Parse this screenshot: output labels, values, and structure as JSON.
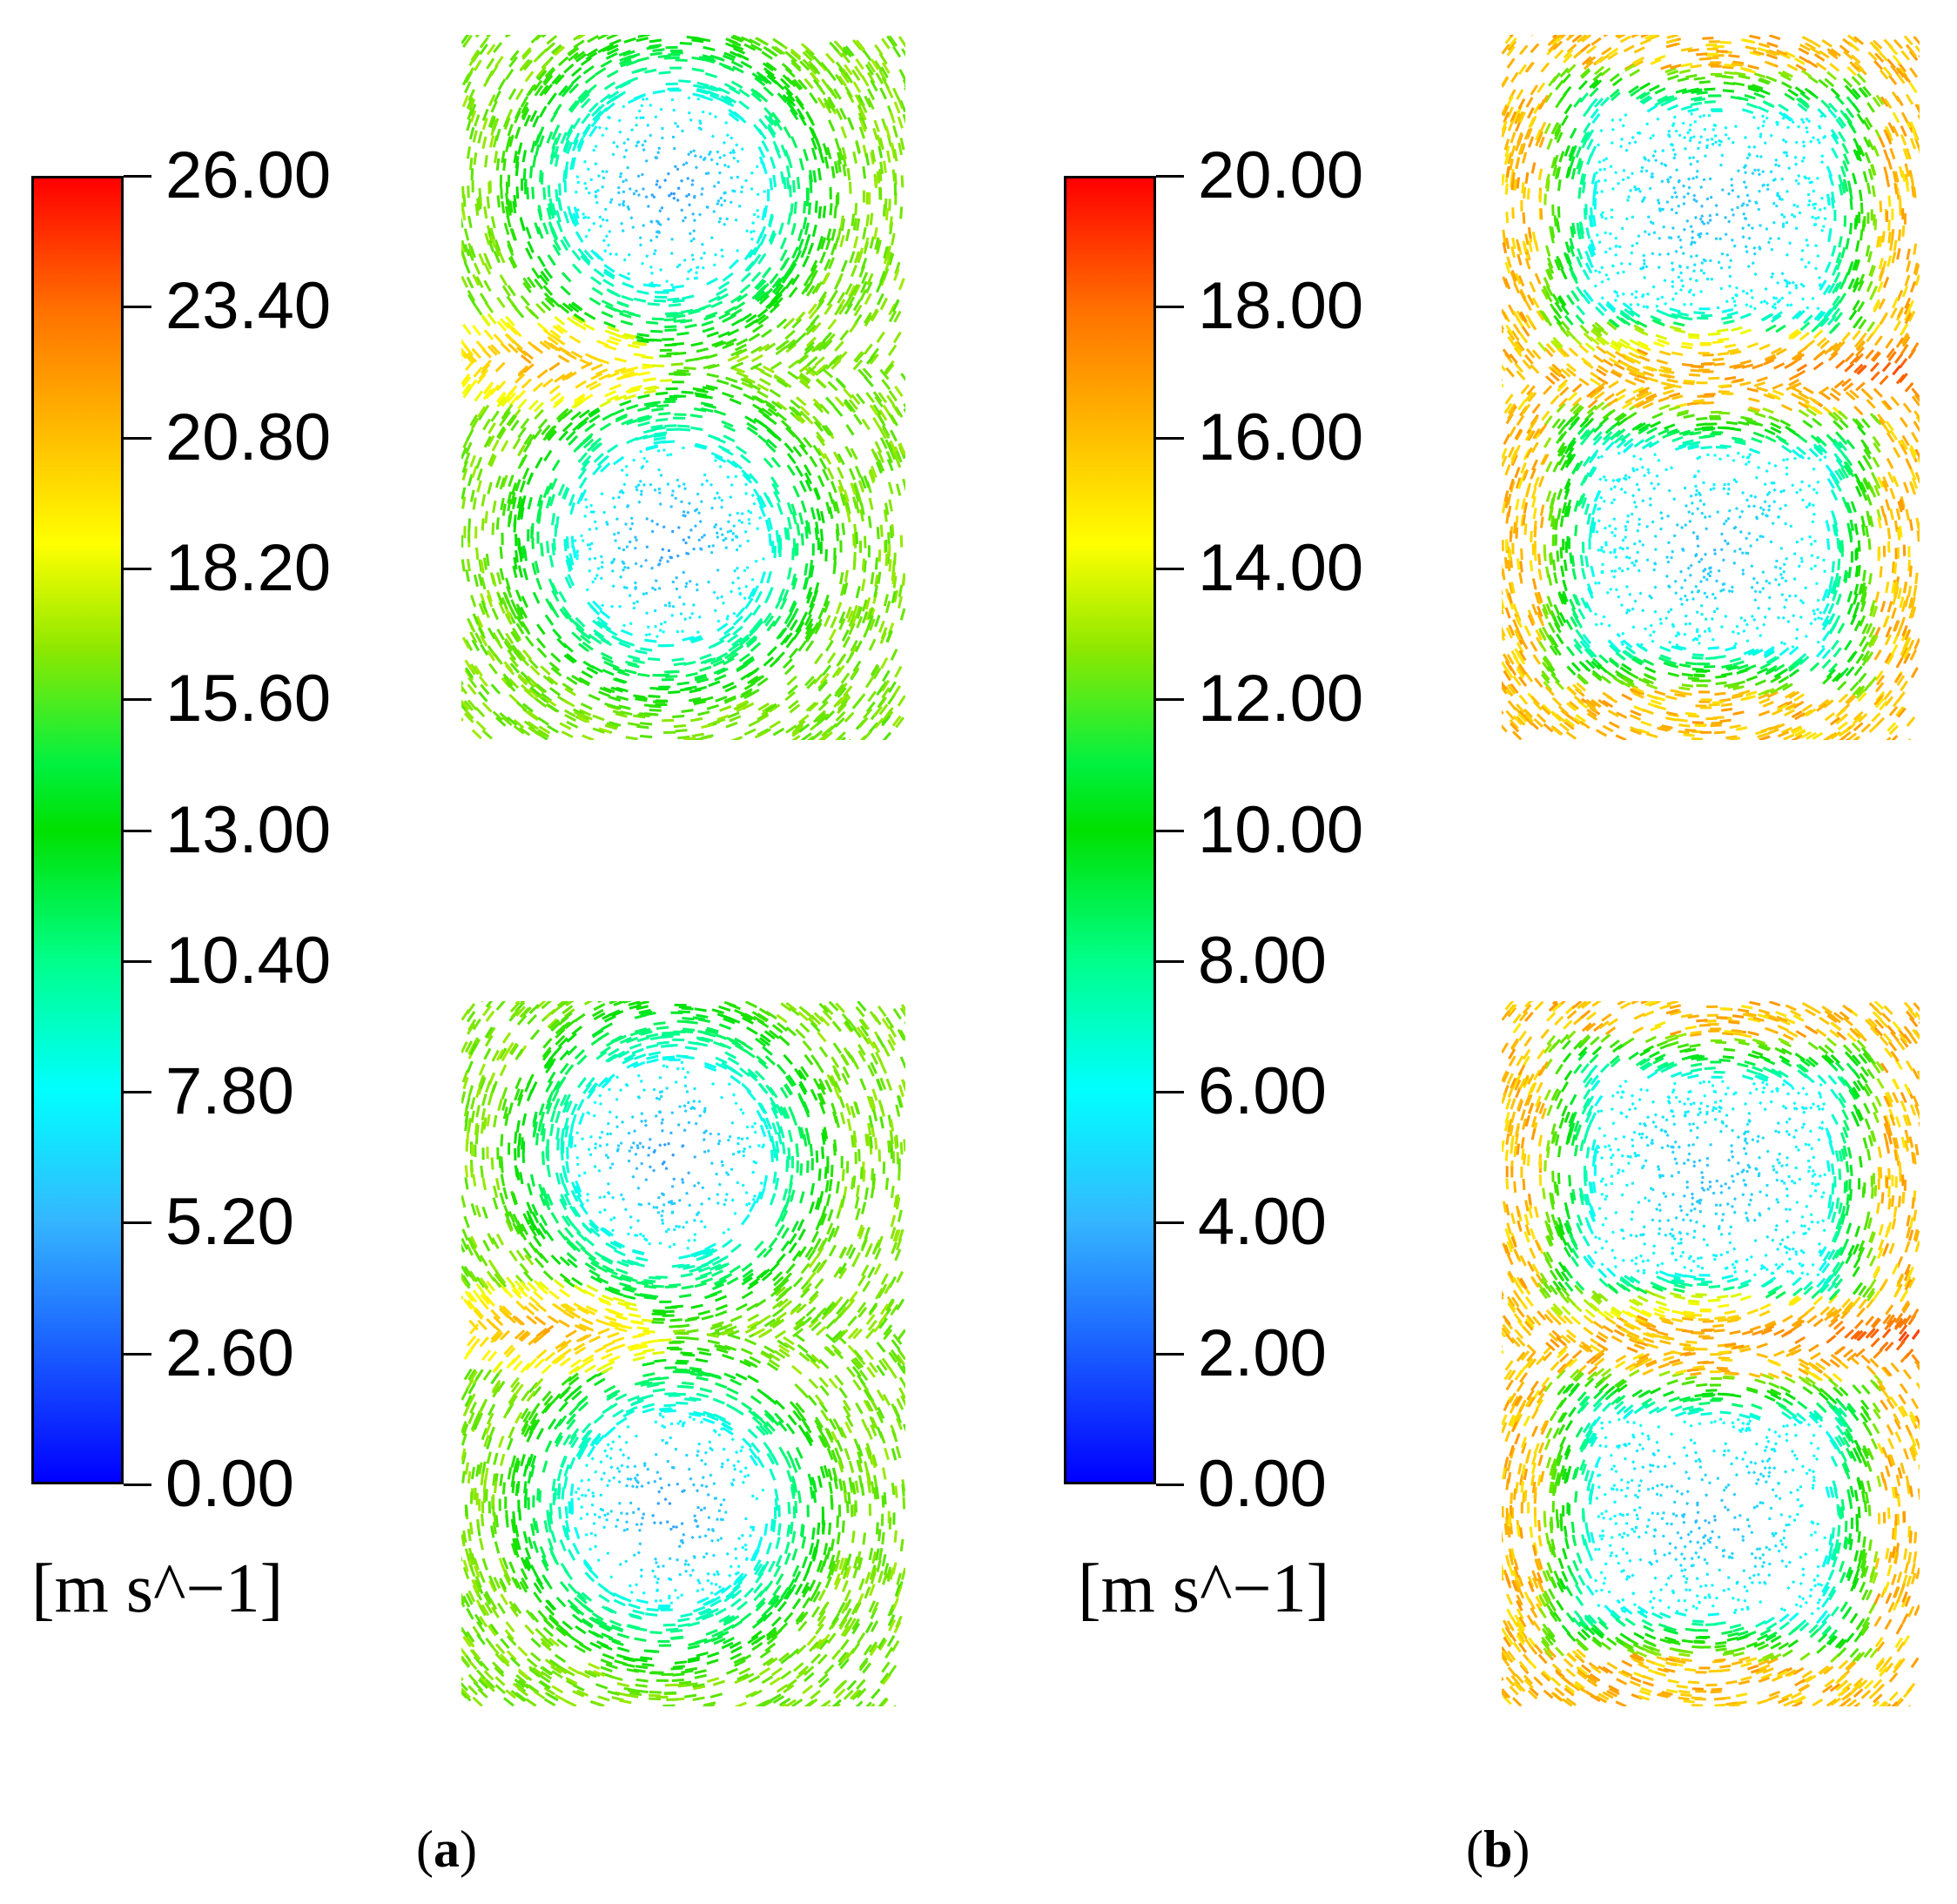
{
  "chart_data": [
    {
      "type": "heatmap",
      "panel": "a",
      "colorbar": {
        "ticks": [
          "26.00",
          "23.40",
          "20.80",
          "18.20",
          "15.60",
          "13.00",
          "10.40",
          "7.80",
          "5.20",
          "2.60",
          "0.00"
        ],
        "range": [
          0,
          26
        ],
        "unit": "[m s^−1]",
        "colors": [
          "#0000ff",
          "#35b6ff",
          "#00ffff",
          "#00e000",
          "#ffff00",
          "#ff7000",
          "#ff0000"
        ]
      },
      "fields": [
        {
          "position": "top",
          "vortex_cores": 2,
          "core_speed": 4,
          "ring_speed": 15,
          "jet_speed": 22
        },
        {
          "position": "bottom",
          "vortex_cores": 2,
          "core_speed": 4,
          "ring_speed": 15,
          "jet_speed": 22
        }
      ],
      "caption": "(a)"
    },
    {
      "type": "heatmap",
      "panel": "b",
      "colorbar": {
        "ticks": [
          "20.00",
          "18.00",
          "16.00",
          "14.00",
          "12.00",
          "10.00",
          "8.00",
          "6.00",
          "4.00",
          "2.00",
          "0.00"
        ],
        "range": [
          0,
          20
        ],
        "unit": "[m s^−1]",
        "colors": [
          "#0000ff",
          "#35b6ff",
          "#00ffff",
          "#00e000",
          "#ffff00",
          "#ff7000",
          "#ff0000"
        ]
      },
      "fields": [
        {
          "position": "top",
          "vortex_cores": 2,
          "core_speed": 4,
          "ring_speed": 15,
          "jet_speed": 19
        },
        {
          "position": "bottom",
          "vortex_cores": 2,
          "core_speed": 4,
          "ring_speed": 15,
          "jet_speed": 19
        }
      ],
      "caption": "(b)"
    }
  ],
  "labels": {
    "unit_a": "[m s^−1]",
    "unit_b": "[m s^−1]",
    "caption_a": "a",
    "caption_b": "b"
  }
}
